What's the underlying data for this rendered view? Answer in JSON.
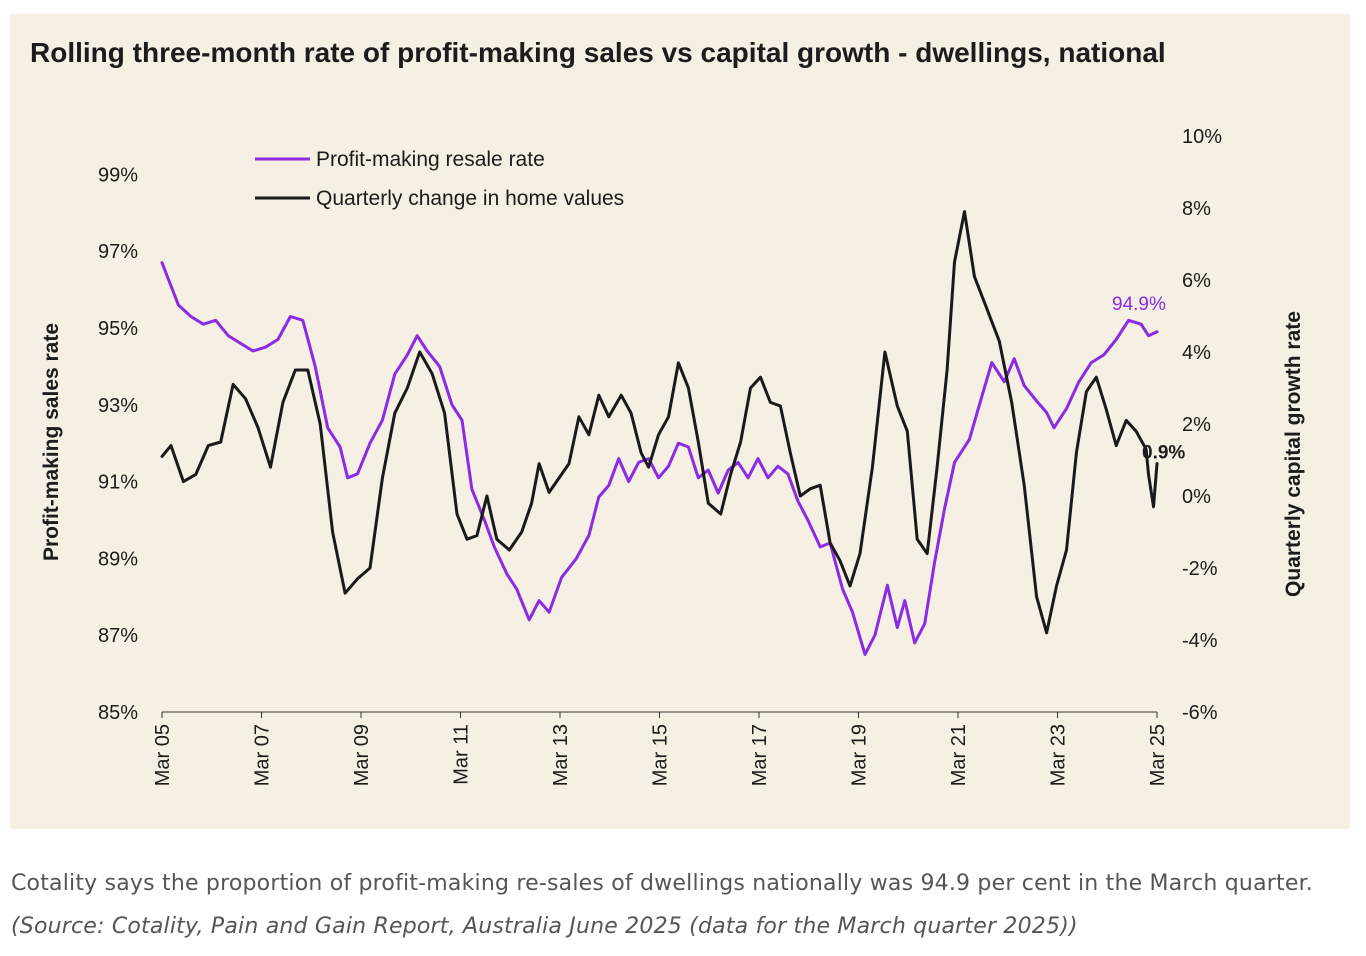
{
  "chart_data": {
    "type": "line",
    "title": "Rolling three-month rate of profit-making sales vs capital growth - dwellings, national",
    "ylabel_left": "Profit-making sales rate",
    "ylabel_right": "Quarterly capital growth rate",
    "x_ticks": [
      "Mar 05",
      "Mar 07",
      "Mar 09",
      "Mar 11",
      "Mar 13",
      "Mar 15",
      "Mar 17",
      "Mar 19",
      "Mar 21",
      "Mar 23",
      "Mar 25"
    ],
    "x_range": [
      2005.17,
      2025.17
    ],
    "y_left": {
      "ticks": [
        "85%",
        "87%",
        "89%",
        "91%",
        "93%",
        "95%",
        "97%",
        "99%"
      ],
      "range": [
        85,
        100
      ]
    },
    "y_right": {
      "ticks": [
        "-6%",
        "-4%",
        "-2%",
        "0%",
        "2%",
        "4%",
        "6%",
        "8%",
        "10%"
      ],
      "range": [
        -6,
        10
      ]
    },
    "legend_position": "top-left",
    "series": [
      {
        "name": "Profit-making resale rate",
        "axis": "left",
        "color": "#8b2be2",
        "end_label": "94.9%",
        "points": [
          [
            2005.17,
            96.7
          ],
          [
            2005.5,
            95.6
          ],
          [
            2005.75,
            95.3
          ],
          [
            2006.0,
            95.1
          ],
          [
            2006.25,
            95.2
          ],
          [
            2006.5,
            94.8
          ],
          [
            2006.75,
            94.6
          ],
          [
            2007.0,
            94.4
          ],
          [
            2007.25,
            94.5
          ],
          [
            2007.5,
            94.7
          ],
          [
            2007.75,
            95.3
          ],
          [
            2008.0,
            95.2
          ],
          [
            2008.25,
            94.0
          ],
          [
            2008.5,
            92.4
          ],
          [
            2008.75,
            91.9
          ],
          [
            2008.9,
            91.1
          ],
          [
            2009.1,
            91.2
          ],
          [
            2009.35,
            92.0
          ],
          [
            2009.6,
            92.6
          ],
          [
            2009.85,
            93.8
          ],
          [
            2010.1,
            94.3
          ],
          [
            2010.3,
            94.8
          ],
          [
            2010.5,
            94.4
          ],
          [
            2010.75,
            94.0
          ],
          [
            2011.0,
            93.0
          ],
          [
            2011.2,
            92.6
          ],
          [
            2011.4,
            90.8
          ],
          [
            2011.65,
            90.0
          ],
          [
            2011.85,
            89.3
          ],
          [
            2012.1,
            88.6
          ],
          [
            2012.3,
            88.2
          ],
          [
            2012.55,
            87.4
          ],
          [
            2012.75,
            87.9
          ],
          [
            2012.95,
            87.6
          ],
          [
            2013.2,
            88.5
          ],
          [
            2013.5,
            89.0
          ],
          [
            2013.75,
            89.6
          ],
          [
            2013.95,
            90.6
          ],
          [
            2014.15,
            90.9
          ],
          [
            2014.35,
            91.6
          ],
          [
            2014.55,
            91.0
          ],
          [
            2014.75,
            91.5
          ],
          [
            2014.95,
            91.6
          ],
          [
            2015.15,
            91.1
          ],
          [
            2015.35,
            91.4
          ],
          [
            2015.55,
            92.0
          ],
          [
            2015.75,
            91.9
          ],
          [
            2015.95,
            91.1
          ],
          [
            2016.15,
            91.3
          ],
          [
            2016.35,
            90.7
          ],
          [
            2016.55,
            91.3
          ],
          [
            2016.75,
            91.5
          ],
          [
            2016.95,
            91.1
          ],
          [
            2017.15,
            91.6
          ],
          [
            2017.35,
            91.1
          ],
          [
            2017.55,
            91.4
          ],
          [
            2017.75,
            91.2
          ],
          [
            2017.95,
            90.5
          ],
          [
            2018.15,
            90.0
          ],
          [
            2018.4,
            89.3
          ],
          [
            2018.6,
            89.4
          ],
          [
            2018.85,
            88.2
          ],
          [
            2019.05,
            87.6
          ],
          [
            2019.3,
            86.5
          ],
          [
            2019.5,
            87.0
          ],
          [
            2019.75,
            88.3
          ],
          [
            2019.95,
            87.2
          ],
          [
            2020.1,
            87.9
          ],
          [
            2020.3,
            86.8
          ],
          [
            2020.5,
            87.3
          ],
          [
            2020.7,
            88.9
          ],
          [
            2020.9,
            90.3
          ],
          [
            2021.1,
            91.5
          ],
          [
            2021.4,
            92.1
          ],
          [
            2021.6,
            93.0
          ],
          [
            2021.85,
            94.1
          ],
          [
            2022.1,
            93.6
          ],
          [
            2022.3,
            94.2
          ],
          [
            2022.5,
            93.5
          ],
          [
            2022.75,
            93.1
          ],
          [
            2022.95,
            92.8
          ],
          [
            2023.1,
            92.4
          ],
          [
            2023.35,
            92.9
          ],
          [
            2023.6,
            93.6
          ],
          [
            2023.85,
            94.1
          ],
          [
            2024.1,
            94.3
          ],
          [
            2024.35,
            94.7
          ],
          [
            2024.6,
            95.2
          ],
          [
            2024.85,
            95.1
          ],
          [
            2025.0,
            94.8
          ],
          [
            2025.17,
            94.9
          ]
        ]
      },
      {
        "name": "Quarterly change in home values",
        "axis": "right",
        "color": "#1a1a1a",
        "end_label": "0.9%",
        "points": [
          [
            2005.17,
            1.1
          ],
          [
            2005.35,
            1.4
          ],
          [
            2005.6,
            0.4
          ],
          [
            2005.85,
            0.6
          ],
          [
            2006.1,
            1.4
          ],
          [
            2006.35,
            1.5
          ],
          [
            2006.6,
            3.1
          ],
          [
            2006.85,
            2.7
          ],
          [
            2007.1,
            1.9
          ],
          [
            2007.35,
            0.8
          ],
          [
            2007.6,
            2.6
          ],
          [
            2007.85,
            3.5
          ],
          [
            2008.1,
            3.5
          ],
          [
            2008.35,
            2.0
          ],
          [
            2008.6,
            -1.0
          ],
          [
            2008.85,
            -2.7
          ],
          [
            2009.1,
            -2.3
          ],
          [
            2009.35,
            -2.0
          ],
          [
            2009.6,
            0.5
          ],
          [
            2009.85,
            2.3
          ],
          [
            2010.1,
            3.0
          ],
          [
            2010.35,
            4.0
          ],
          [
            2010.6,
            3.4
          ],
          [
            2010.85,
            2.3
          ],
          [
            2011.1,
            -0.5
          ],
          [
            2011.3,
            -1.2
          ],
          [
            2011.5,
            -1.1
          ],
          [
            2011.7,
            0.0
          ],
          [
            2011.9,
            -1.2
          ],
          [
            2012.15,
            -1.5
          ],
          [
            2012.4,
            -1.0
          ],
          [
            2012.6,
            -0.2
          ],
          [
            2012.75,
            0.9
          ],
          [
            2012.95,
            0.1
          ],
          [
            2013.15,
            0.5
          ],
          [
            2013.35,
            0.9
          ],
          [
            2013.55,
            2.2
          ],
          [
            2013.75,
            1.7
          ],
          [
            2013.95,
            2.8
          ],
          [
            2014.15,
            2.2
          ],
          [
            2014.4,
            2.8
          ],
          [
            2014.6,
            2.3
          ],
          [
            2014.8,
            1.2
          ],
          [
            2014.95,
            0.8
          ],
          [
            2015.15,
            1.7
          ],
          [
            2015.35,
            2.2
          ],
          [
            2015.55,
            3.7
          ],
          [
            2015.75,
            3.0
          ],
          [
            2015.95,
            1.5
          ],
          [
            2016.15,
            -0.2
          ],
          [
            2016.4,
            -0.5
          ],
          [
            2016.6,
            0.6
          ],
          [
            2016.8,
            1.5
          ],
          [
            2017.0,
            3.0
          ],
          [
            2017.2,
            3.3
          ],
          [
            2017.4,
            2.6
          ],
          [
            2017.6,
            2.5
          ],
          [
            2017.8,
            1.2
          ],
          [
            2018.0,
            0.0
          ],
          [
            2018.2,
            0.2
          ],
          [
            2018.4,
            0.3
          ],
          [
            2018.6,
            -1.3
          ],
          [
            2018.8,
            -1.8
          ],
          [
            2019.0,
            -2.5
          ],
          [
            2019.2,
            -1.6
          ],
          [
            2019.45,
            0.8
          ],
          [
            2019.7,
            4.0
          ],
          [
            2019.95,
            2.5
          ],
          [
            2020.15,
            1.8
          ],
          [
            2020.35,
            -1.2
          ],
          [
            2020.55,
            -1.6
          ],
          [
            2020.75,
            0.8
          ],
          [
            2020.95,
            3.5
          ],
          [
            2021.1,
            6.5
          ],
          [
            2021.3,
            7.9
          ],
          [
            2021.5,
            6.1
          ],
          [
            2021.75,
            5.2
          ],
          [
            2022.0,
            4.3
          ],
          [
            2022.25,
            2.6
          ],
          [
            2022.5,
            0.3
          ],
          [
            2022.75,
            -2.8
          ],
          [
            2022.95,
            -3.8
          ],
          [
            2023.15,
            -2.5
          ],
          [
            2023.35,
            -1.5
          ],
          [
            2023.55,
            1.2
          ],
          [
            2023.75,
            2.9
          ],
          [
            2023.95,
            3.3
          ],
          [
            2024.15,
            2.4
          ],
          [
            2024.35,
            1.4
          ],
          [
            2024.55,
            2.1
          ],
          [
            2024.75,
            1.8
          ],
          [
            2024.95,
            1.3
          ],
          [
            2025.0,
            0.6
          ],
          [
            2025.1,
            -0.3
          ],
          [
            2025.17,
            0.9
          ]
        ]
      }
    ]
  },
  "caption": {
    "text": "Cotality says the proportion of profit-making re-sales of dwellings nationally was 94.9 per cent in the March quarter.",
    "source": "(Source: Cotality, Pain and Gain Report, Australia June 2025 (data for the March quarter 2025))"
  }
}
